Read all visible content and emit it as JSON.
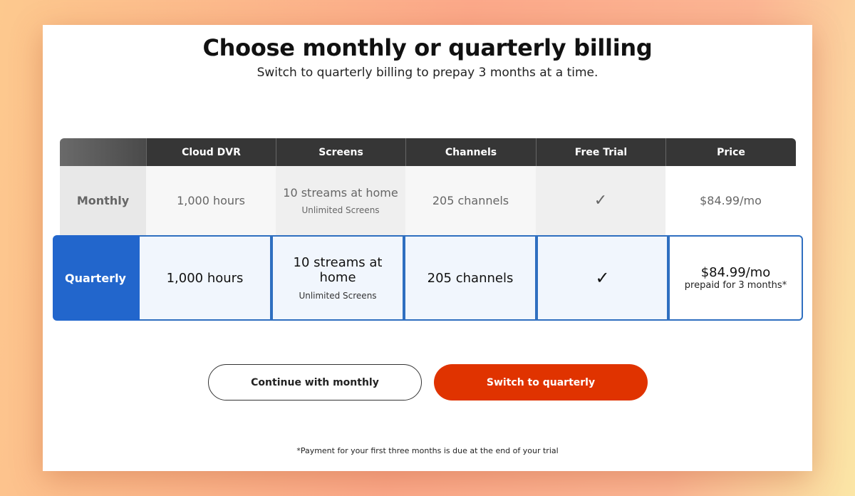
{
  "title": "Choose monthly or quarterly billing",
  "subtitle": "Switch to quarterly billing to prepay 3 months at a time.",
  "columns": [
    "Cloud DVR",
    "Screens",
    "Channels",
    "Free Trial",
    "Price"
  ],
  "monthly": {
    "label": "Monthly",
    "dvr": "1,000 hours",
    "screens": "10 streams at home",
    "screens_note": "Unlimited Screens",
    "channels": "205 channels",
    "trial": "✓",
    "price": "$84.99/mo"
  },
  "quarterly": {
    "label": "Quarterly",
    "dvr": "1,000 hours",
    "screens": "10 streams at home",
    "screens_note": "Unlimited Screens",
    "channels": "205 channels",
    "trial": "✓",
    "price": "$84.99/mo",
    "price_note": "prepaid for 3 months*"
  },
  "buttons": {
    "monthly": "Continue with monthly",
    "quarterly": "Switch to quarterly"
  },
  "footnote": "*Payment for your first three months is due at the end of your trial",
  "colors": {
    "accent_blue": "#2266cc",
    "cta": "#e03300",
    "header": "#363636"
  }
}
